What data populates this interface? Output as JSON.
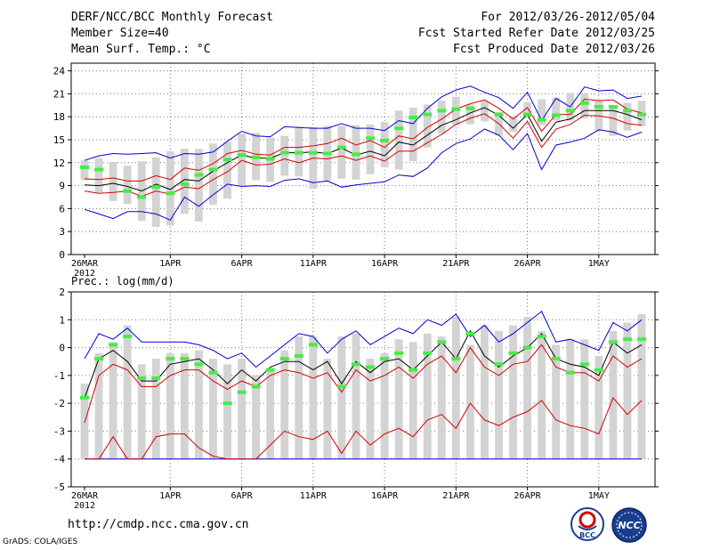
{
  "header": {
    "title": "DERF/NCC/BCC Monthly Forecast",
    "member": "Member Size=40",
    "variable": "Mean Surf. Temp.: °C",
    "period": "For 2012/03/26-2012/05/04",
    "started": "Fcst Started Refer Date 2012/03/25",
    "produced": "Fcst Produced Date 2012/03/26"
  },
  "footer": {
    "url": "http://cmdp.ncc.cma.gov.cn",
    "credit": "GrADS: COLA/IGES"
  },
  "logos": {
    "bcc": "BCC",
    "ncc": "NCC"
  },
  "colors": {
    "box": "#d3d3d3",
    "mean": "#000000",
    "spread": "#d40000",
    "minmax": "#0000d4",
    "obs": "#44ee44",
    "grid": "#777777"
  },
  "chart_data": [
    {
      "type": "ensemble-box",
      "title": "Mean Surf. Temp.: °C",
      "xlabel": "",
      "ylabel": "",
      "days": 40,
      "x_ticks": [
        {
          "day": 0,
          "label": "26MAR",
          "sub": "2012"
        },
        {
          "day": 6,
          "label": "1APR",
          "sub": ""
        },
        {
          "day": 11,
          "label": "6APR",
          "sub": ""
        },
        {
          "day": 16,
          "label": "11APR",
          "sub": ""
        },
        {
          "day": 21,
          "label": "16APR",
          "sub": ""
        },
        {
          "day": 26,
          "label": "21APR",
          "sub": ""
        },
        {
          "day": 31,
          "label": "26APR",
          "sub": ""
        },
        {
          "day": 36,
          "label": "1MAY",
          "sub": ""
        }
      ],
      "ylim": [
        0,
        25
      ],
      "yticks": [
        0,
        3,
        6,
        9,
        12,
        15,
        18,
        21,
        24
      ],
      "box_low": [
        9.7,
        8.1,
        7.0,
        6.6,
        4.4,
        3.6,
        3.8,
        5.3,
        4.3,
        6.5,
        7.3,
        9.0,
        9.7,
        9.5,
        10.3,
        10.2,
        8.6,
        9.6,
        9.9,
        9.8,
        10.5,
        11.4,
        11.1,
        12.2,
        14.0,
        15.8,
        16.9,
        17.0,
        17.4,
        15.5,
        16.0,
        17.9,
        16.9,
        17.5,
        17.5,
        17.8,
        16.2,
        15.5,
        16.2,
        16.8
      ],
      "box_high": [
        12.3,
        12.6,
        12.1,
        11.6,
        12.2,
        12.7,
        13.5,
        13.8,
        13.8,
        14.5,
        14.7,
        15.8,
        15.9,
        15.3,
        15.5,
        16.7,
        16.7,
        16.8,
        16.8,
        16.9,
        17.0,
        17.3,
        18.8,
        19.2,
        19.6,
        20.1,
        20.6,
        19.6,
        20.1,
        18.6,
        18.1,
        19.9,
        20.3,
        20.5,
        21.1,
        21.1,
        20.1,
        19.3,
        19.8,
        20.1
      ],
      "mean": [
        9.1,
        9.0,
        9.3,
        8.9,
        8.3,
        9.2,
        8.5,
        9.8,
        9.6,
        10.9,
        12.0,
        13.0,
        12.6,
        12.6,
        13.3,
        13.3,
        13.4,
        13.2,
        13.9,
        13.0,
        13.5,
        12.9,
        14.7,
        14.3,
        15.6,
        16.9,
        17.6,
        18.5,
        19.2,
        18.2,
        16.5,
        18.3,
        14.8,
        17.3,
        17.7,
        18.8,
        18.8,
        18.8,
        18.3,
        17.6
      ],
      "upper": [
        9.9,
        9.8,
        10.0,
        9.6,
        9.6,
        10.3,
        9.8,
        11.3,
        11.0,
        11.9,
        13.2,
        13.6,
        13.1,
        13.0,
        14.0,
        14.0,
        14.2,
        14.5,
        15.2,
        14.3,
        14.9,
        14.0,
        15.5,
        15.1,
        16.6,
        17.7,
        19.0,
        19.7,
        20.2,
        19.1,
        17.7,
        19.2,
        16.1,
        18.3,
        18.3,
        20.3,
        20.1,
        20.2,
        19.0,
        18.5
      ],
      "lower": [
        8.3,
        8.0,
        8.1,
        8.3,
        7.6,
        8.3,
        7.9,
        8.8,
        8.6,
        9.8,
        10.8,
        12.3,
        11.7,
        11.8,
        12.5,
        12.0,
        12.6,
        12.5,
        12.9,
        12.3,
        12.9,
        12.2,
        13.5,
        13.5,
        14.6,
        15.7,
        17.0,
        17.8,
        18.4,
        17.1,
        15.2,
        17.4,
        14.0,
        16.4,
        17.0,
        18.2,
        18.1,
        17.8,
        17.1,
        16.9
      ],
      "max": [
        12.3,
        12.9,
        13.2,
        13.1,
        13.2,
        13.3,
        12.6,
        13.2,
        13.1,
        13.4,
        14.8,
        16.1,
        15.5,
        15.4,
        16.7,
        16.6,
        16.5,
        16.5,
        17.1,
        16.5,
        16.5,
        16.2,
        17.5,
        17.1,
        19.1,
        20.6,
        21.5,
        22.0,
        21.2,
        20.5,
        19.1,
        21.2,
        17.5,
        20.4,
        19.3,
        21.9,
        21.4,
        21.5,
        20.4,
        20.7
      ],
      "min": [
        5.9,
        5.3,
        4.7,
        5.6,
        5.6,
        5.3,
        4.5,
        7.5,
        6.3,
        7.8,
        9.2,
        8.9,
        9.0,
        8.9,
        9.7,
        9.9,
        9.4,
        9.6,
        8.8,
        9.1,
        9.3,
        9.5,
        10.4,
        10.2,
        11.3,
        13.3,
        14.5,
        15.1,
        16.4,
        15.6,
        13.7,
        15.8,
        11.1,
        14.3,
        14.7,
        15.2,
        16.3,
        16.0,
        15.3,
        16.0
      ],
      "obs": [
        11.4,
        11.1,
        null,
        8.3,
        7.5,
        8.8,
        8.0,
        9.2,
        10.4,
        11.1,
        12.4,
        13.0,
        12.7,
        12.5,
        13.3,
        13.3,
        13.3,
        13.2,
        14.0,
        13.1,
        15.2,
        14.9,
        16.5,
        17.9,
        18.3,
        18.8,
        19.0,
        19.1,
        null,
        18.3,
        null,
        18.3,
        17.6,
        18.2,
        18.8,
        19.8,
        19.3,
        19.3,
        18.8,
        18.3
      ]
    },
    {
      "type": "ensemble-box",
      "title": "Prec.: log(mm/d)",
      "xlabel": "",
      "ylabel": "",
      "days": 40,
      "x_ticks": [
        {
          "day": 0,
          "label": "26MAR",
          "sub": "2012"
        },
        {
          "day": 6,
          "label": "1APR",
          "sub": ""
        },
        {
          "day": 11,
          "label": "6APR",
          "sub": ""
        },
        {
          "day": 16,
          "label": "11APR",
          "sub": ""
        },
        {
          "day": 21,
          "label": "16APR",
          "sub": ""
        },
        {
          "day": 26,
          "label": "21APR",
          "sub": ""
        },
        {
          "day": 31,
          "label": "26APR",
          "sub": ""
        },
        {
          "day": 36,
          "label": "1MAY",
          "sub": ""
        }
      ],
      "ylim": [
        -5,
        2
      ],
      "yticks": [
        -5,
        -4,
        -3,
        -2,
        -1,
        0,
        1,
        2
      ],
      "box_low": [
        -4,
        -4,
        -4,
        -4,
        -4,
        -4,
        -4,
        -4,
        -4,
        -4,
        -4,
        -4,
        -4,
        -4,
        -4,
        -4,
        -4,
        -4,
        -4,
        -4,
        -4,
        -4,
        -4,
        -4,
        -4,
        -4,
        -4,
        -4,
        -4,
        -4,
        -4,
        -4,
        -4,
        -4,
        -4,
        -4,
        -4,
        -4,
        -4,
        -4
      ],
      "box_high": [
        -1.3,
        -0.2,
        0.2,
        0.8,
        -0.6,
        -0.4,
        -0.2,
        -0.2,
        -0.1,
        -0.4,
        -0.6,
        -0.4,
        -1.0,
        -0.8,
        -0.1,
        0.4,
        0.4,
        -0.4,
        0.4,
        0.5,
        -0.4,
        -0.2,
        0.3,
        0.2,
        0.5,
        0.4,
        1.1,
        0.1,
        0.8,
        0.6,
        0.8,
        1.1,
        0.6,
        0.1,
        0.3,
        0.3,
        -0.3,
        0.6,
        0.9,
        1.2
      ],
      "mean": [
        -1.8,
        -0.4,
        -0.1,
        -0.5,
        -1.2,
        -1.2,
        -0.6,
        -0.5,
        -0.4,
        -0.8,
        -1.3,
        -0.8,
        -1.2,
        -0.7,
        -0.5,
        -0.5,
        -0.8,
        -0.5,
        -1.3,
        -0.5,
        -0.9,
        -0.5,
        -0.4,
        -0.8,
        -0.3,
        0.2,
        -0.4,
        0.6,
        -0.3,
        -0.7,
        -0.3,
        0.0,
        0.5,
        -0.4,
        -0.6,
        -0.7,
        -1.0,
        0.2,
        -0.2,
        0.1
      ],
      "upper": [
        -2.7,
        -1.0,
        -0.6,
        -0.8,
        -1.4,
        -1.4,
        -1.0,
        -0.8,
        -0.8,
        -1.2,
        -1.5,
        -1.2,
        -1.4,
        -1.0,
        -0.8,
        -0.9,
        -1.1,
        -0.9,
        -1.6,
        -0.8,
        -1.2,
        -1.0,
        -0.7,
        -1.1,
        -0.6,
        -0.3,
        -0.9,
        0.0,
        -0.7,
        -1.0,
        -0.6,
        -0.5,
        0.1,
        -0.7,
        -0.9,
        -0.9,
        -1.2,
        -0.3,
        -0.7,
        -0.4
      ],
      "lower": [
        -4.0,
        -4.0,
        -3.2,
        -4.0,
        -4.0,
        -3.2,
        -3.1,
        -3.1,
        -3.6,
        -3.9,
        -4.0,
        -4.0,
        -4.0,
        -3.5,
        -3.0,
        -3.2,
        -3.3,
        -3.0,
        -3.8,
        -3.0,
        -3.5,
        -3.1,
        -2.9,
        -3.2,
        -2.6,
        -2.4,
        -2.9,
        -2.0,
        -2.6,
        -2.8,
        -2.5,
        -2.3,
        -1.9,
        -2.6,
        -2.8,
        -2.9,
        -3.1,
        -1.8,
        -2.4,
        -1.9
      ],
      "max": [
        -0.4,
        0.5,
        0.3,
        0.7,
        0.2,
        0.2,
        0.2,
        0.2,
        0.1,
        -0.1,
        -0.4,
        -0.2,
        -0.7,
        -0.3,
        0.1,
        0.5,
        0.4,
        -0.2,
        0.3,
        0.6,
        0.1,
        0.4,
        0.7,
        0.5,
        1.0,
        0.8,
        1.2,
        0.4,
        0.8,
        0.2,
        0.5,
        0.9,
        1.3,
        0.2,
        0.3,
        0.1,
        -0.1,
        0.9,
        0.6,
        1.0
      ],
      "min": [
        -4,
        -4,
        -4,
        -4,
        -4,
        -4,
        -4,
        -4,
        -4,
        -4,
        -4,
        -4,
        -4,
        -4,
        -4,
        -4,
        -4,
        -4,
        -4,
        -4,
        -4,
        -4,
        -4,
        -4,
        -4,
        -4,
        -4,
        -4,
        -4,
        -4,
        -4,
        -4,
        -4,
        -4,
        -4,
        -4,
        -4,
        -4,
        -4,
        -4
      ],
      "obs": [
        -1.8,
        -0.4,
        0.1,
        0.4,
        -1.1,
        -1.1,
        -0.4,
        -0.4,
        -0.6,
        -0.9,
        -2.0,
        -1.6,
        -1.4,
        -0.8,
        -0.4,
        -0.3,
        0.1,
        null,
        -1.4,
        -0.6,
        -0.7,
        -0.4,
        -0.2,
        -0.8,
        -0.2,
        0.2,
        -0.4,
        0.5,
        null,
        -0.6,
        -0.2,
        0.0,
        0.4,
        -0.4,
        -0.9,
        -0.6,
        -0.8,
        0.2,
        0.3,
        0.3
      ]
    }
  ]
}
